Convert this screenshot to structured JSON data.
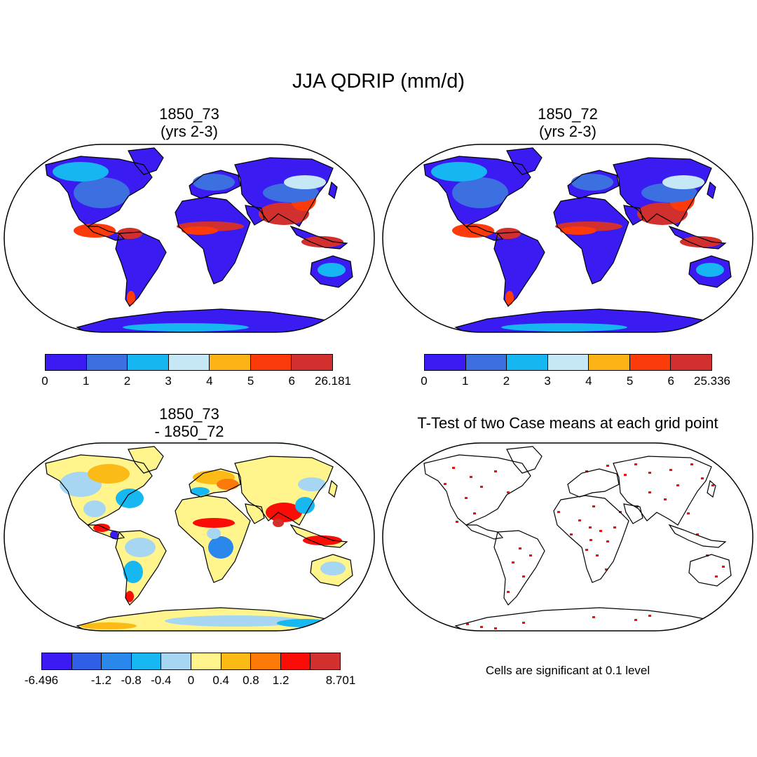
{
  "figure_title": "JJA QDRIP (mm/d)",
  "panels": {
    "top_left": {
      "title_line1": "1850_73",
      "title_line2": "(yrs 2-3)",
      "colorbar_colors": [
        "#3a1cf2",
        "#3c6fe0",
        "#15b6f2",
        "#c6e7f6",
        "#fbb315",
        "#fd3a09",
        "#d22f2f"
      ],
      "colorbar_ticks": [
        "0",
        "1",
        "2",
        "3",
        "4",
        "5",
        "6",
        "26.181"
      ]
    },
    "top_right": {
      "title_line1": "1850_72",
      "title_line2": "(yrs 2-3)",
      "colorbar_colors": [
        "#3a1cf2",
        "#3c6fe0",
        "#15b6f2",
        "#c6e7f6",
        "#fbb315",
        "#fd3a09",
        "#d22f2f"
      ],
      "colorbar_ticks": [
        "0",
        "1",
        "2",
        "3",
        "4",
        "5",
        "6",
        "25.336"
      ]
    },
    "bottom_left": {
      "title_line1": "1850_73",
      "title_line2": "- 1850_72",
      "colorbar_colors": [
        "#3a1cf2",
        "#2f5fe6",
        "#2a88ec",
        "#17b8f2",
        "#a6d6f2",
        "#fff58c",
        "#fbba15",
        "#fd7a0a",
        "#f90d06",
        "#d22f2f"
      ],
      "colorbar_ticks": [
        "-6.496",
        "-1.2",
        "-0.8",
        "-0.4",
        "0",
        "0.4",
        "0.8",
        "1.2",
        "8.701"
      ]
    },
    "bottom_right": {
      "title": "T-Test of two Case means at each grid point",
      "note": "Cells are significant at 0.1 level",
      "marker_color": "#ee1111"
    }
  }
}
